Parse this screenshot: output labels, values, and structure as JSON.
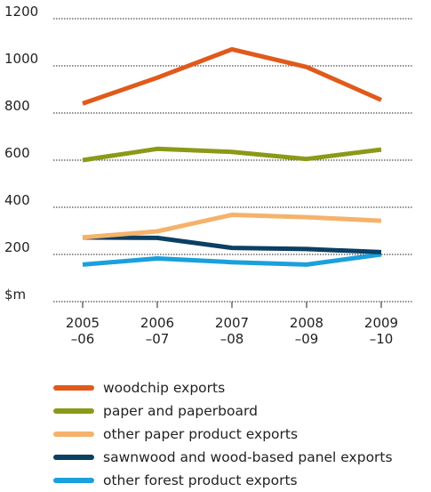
{
  "chart_data": {
    "type": "line",
    "categories": [
      [
        "2005",
        "–06"
      ],
      [
        "2006",
        "–07"
      ],
      [
        "2007",
        "–08"
      ],
      [
        "2008",
        "–09"
      ],
      [
        "2009",
        "–10"
      ]
    ],
    "y_ticks": [
      "$m",
      "200",
      "400",
      "600",
      "800",
      "1000",
      "1200"
    ],
    "ylim": [
      0,
      1200
    ],
    "grid": true,
    "legend_position": "bottom",
    "series": [
      {
        "name": "woodchip exports",
        "color": "#e05a1b",
        "values": [
          840,
          950,
          1070,
          995,
          855
        ]
      },
      {
        "name": "paper and paperboard",
        "color": "#8a9a18",
        "values": [
          600,
          648,
          635,
          605,
          645
        ]
      },
      {
        "name": "other paper product exports",
        "color": "#f5b26b",
        "values": [
          272,
          298,
          368,
          358,
          343
        ]
      },
      {
        "name": "sawnwood and wood-based panel exports",
        "color": "#0b3f63",
        "values": [
          272,
          270,
          228,
          223,
          210
        ]
      },
      {
        "name": "other forest product exports",
        "color": "#1aa0dc",
        "values": [
          157,
          183,
          167,
          157,
          200
        ]
      }
    ]
  }
}
